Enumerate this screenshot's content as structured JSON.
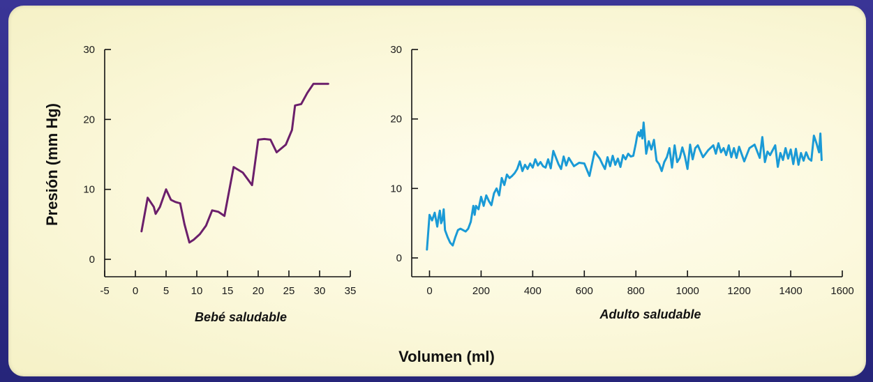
{
  "shared_ylabel": "Presión (mm Hg)",
  "shared_xlabel": "Volumen (ml)",
  "chart_data": [
    {
      "type": "line",
      "xlabel": "Bebé saludable",
      "ylabel": "Presión (mm Hg)",
      "xlim": [
        -5,
        35
      ],
      "ylim": [
        0,
        30
      ],
      "x_ticks": [
        -5,
        0,
        5,
        10,
        15,
        20,
        25,
        30,
        35
      ],
      "y_ticks": [
        0,
        10,
        20,
        30
      ],
      "grid": false,
      "color": "#6b1f6b",
      "series": [
        {
          "x": [
            1,
            2,
            3,
            3.3,
            4,
            5,
            5.8,
            6.5,
            7.3,
            8,
            8.8,
            9.5,
            10.5,
            11.5,
            12.5,
            13.5,
            14.5,
            16,
            17.5,
            19,
            20,
            21,
            22,
            23,
            24.5,
            25.5,
            26,
            27,
            28,
            29,
            30,
            31.4
          ],
          "y": [
            4,
            8.8,
            7.5,
            6.5,
            7.5,
            10,
            8.5,
            8.2,
            8,
            5,
            2.4,
            2.8,
            3.6,
            4.8,
            7,
            6.8,
            6.2,
            13.2,
            12.4,
            10.6,
            17.1,
            17.2,
            17.1,
            15.3,
            16.4,
            18.5,
            22,
            22.2,
            23.8,
            25.1,
            25.1,
            25.1
          ]
        }
      ]
    },
    {
      "type": "line",
      "xlabel": "Adulto saludable",
      "xlim": [
        -50,
        1600
      ],
      "ylim": [
        0,
        30
      ],
      "x_ticks": [
        0,
        200,
        400,
        600,
        800,
        1000,
        1200,
        1400,
        1600
      ],
      "y_ticks": [
        0,
        10,
        20,
        30
      ],
      "grid": false,
      "color": "#1a9ad6",
      "series": [
        {
          "x": [
            -10,
            0,
            10,
            20,
            30,
            35,
            40,
            45,
            50,
            55,
            60,
            70,
            80,
            90,
            100,
            110,
            120,
            140,
            150,
            160,
            170,
            175,
            180,
            190,
            200,
            210,
            220,
            230,
            240,
            250,
            260,
            270,
            280,
            290,
            300,
            310,
            320,
            330,
            340,
            350,
            360,
            370,
            380,
            390,
            400,
            410,
            420,
            430,
            440,
            450,
            460,
            470,
            480,
            500,
            510,
            520,
            530,
            540,
            560,
            580,
            600,
            620,
            640,
            650,
            660,
            670,
            680,
            690,
            700,
            710,
            720,
            730,
            740,
            750,
            760,
            770,
            780,
            790,
            800,
            805,
            810,
            815,
            820,
            825,
            830,
            840,
            850,
            860,
            870,
            880,
            890,
            900,
            910,
            920,
            930,
            940,
            950,
            960,
            970,
            980,
            990,
            1000,
            1010,
            1020,
            1030,
            1040,
            1060,
            1080,
            1100,
            1110,
            1120,
            1130,
            1140,
            1150,
            1160,
            1170,
            1180,
            1190,
            1200,
            1220,
            1240,
            1260,
            1280,
            1290,
            1300,
            1310,
            1320,
            1340,
            1350,
            1360,
            1370,
            1380,
            1390,
            1400,
            1410,
            1420,
            1430,
            1440,
            1450,
            1460,
            1470,
            1480,
            1490,
            1500,
            1510,
            1515,
            1520
          ],
          "y": [
            1.2,
            6.2,
            5.4,
            6.5,
            4.5,
            5.8,
            6.8,
            5,
            5.5,
            7,
            4,
            3,
            2.2,
            1.8,
            3,
            4,
            4.2,
            3.8,
            4.2,
            5.2,
            7.5,
            6.2,
            7.5,
            7,
            8.8,
            7.5,
            9,
            8.2,
            7.6,
            9.3,
            10,
            9,
            11.5,
            10.5,
            12,
            11.5,
            11.8,
            12.2,
            12.8,
            13.9,
            12.5,
            13.4,
            12.8,
            13.6,
            13,
            14.2,
            13.3,
            13.8,
            13.2,
            13,
            14.2,
            12.9,
            15.4,
            13.5,
            12.8,
            14.6,
            13.3,
            14.4,
            13.2,
            13.7,
            13.6,
            11.8,
            15.3,
            14.8,
            14.3,
            13.5,
            12.8,
            14.5,
            13.2,
            14.7,
            13.4,
            14.3,
            13.1,
            14.8,
            14.2,
            15,
            14.6,
            14.7,
            16.5,
            17.6,
            18.1,
            17.5,
            18.4,
            17.2,
            19.5,
            15,
            16.8,
            15.6,
            17,
            14,
            13.5,
            12.5,
            13.8,
            14.5,
            15.8,
            13,
            16.2,
            13.8,
            14.4,
            15.9,
            14.6,
            12.8,
            16.3,
            14.2,
            15.8,
            16.2,
            14.5,
            15.5,
            16.2,
            15,
            16.5,
            15.2,
            15.8,
            14.8,
            16.2,
            14.5,
            15.8,
            14.4,
            16,
            13.9,
            15.8,
            16.3,
            14.4,
            17.4,
            13.8,
            15.3,
            14.8,
            16.2,
            13.1,
            15.1,
            14.1,
            15.8,
            14.3,
            15.6,
            13.5,
            15.7,
            13.4,
            15.1,
            14,
            15.2,
            14.3,
            14,
            17.6,
            16.5,
            15.2,
            17.9,
            14.1
          ]
        }
      ]
    }
  ]
}
